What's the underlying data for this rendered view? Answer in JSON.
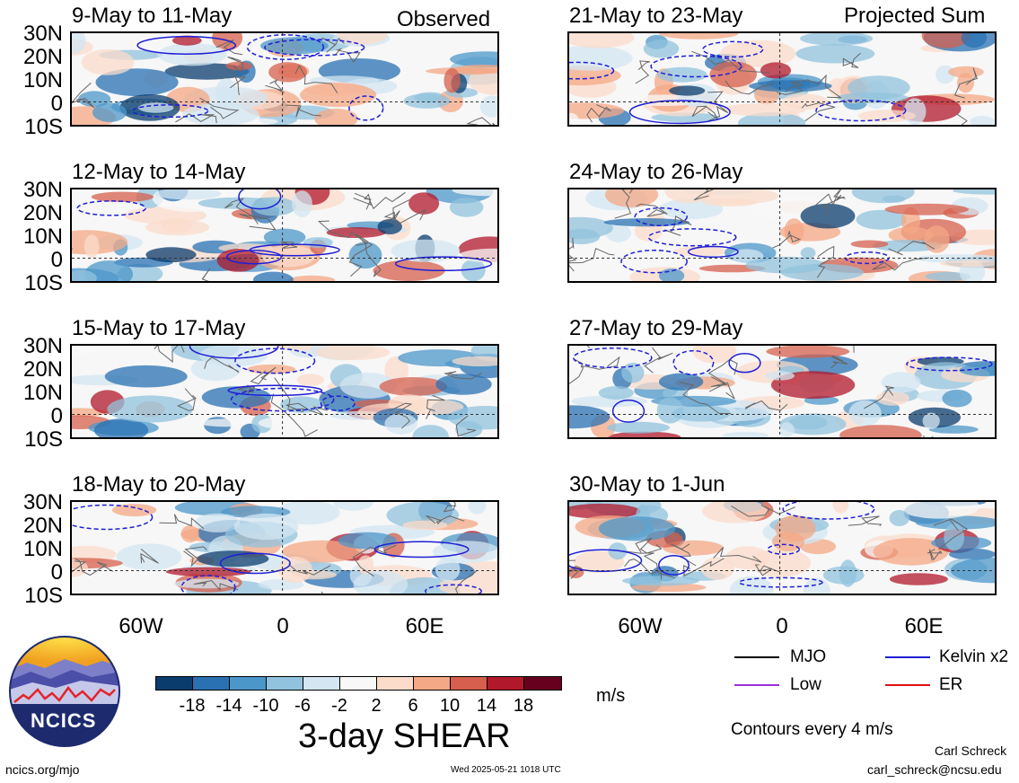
{
  "top_tags": {
    "observed": "Observed",
    "projected": "Projected Sum"
  },
  "panels_left": [
    {
      "title": "9-May to 11-May"
    },
    {
      "title": "12-May to 14-May"
    },
    {
      "title": "15-May to 17-May"
    },
    {
      "title": "18-May to 20-May"
    }
  ],
  "panels_right": [
    {
      "title": "21-May to 23-May"
    },
    {
      "title": "24-May to 26-May"
    },
    {
      "title": "27-May to 29-May"
    },
    {
      "title": "30-May to 1-Jun"
    }
  ],
  "lat_labels": [
    "30N",
    "20N",
    "10N",
    "0",
    "10S"
  ],
  "lon_labels": [
    "60W",
    "0",
    "60E"
  ],
  "colorbar": {
    "colors": [
      "#0b3c6e",
      "#2a71b3",
      "#4c97c9",
      "#91c3de",
      "#d3e6f1",
      "#f8f8f8",
      "#fbdccb",
      "#f4a886",
      "#d6604d",
      "#b2182b",
      "#67001f"
    ],
    "ticks": [
      "-18",
      "-14",
      "-10",
      "-6",
      "-2",
      "2",
      "6",
      "10",
      "14",
      "18"
    ],
    "units": "m/s",
    "title": "3-day SHEAR"
  },
  "legend": [
    {
      "label": "MJO",
      "color": "#000000"
    },
    {
      "label": "Kelvin x2",
      "color": "#1f1fd6"
    },
    {
      "label": "Low",
      "color": "#9b30d9"
    },
    {
      "label": "ER",
      "color": "#e01010"
    }
  ],
  "contour_note": "Contours every 4 m/s",
  "logo_text": "NCICS",
  "footer": {
    "url": "ncics.org/mjo",
    "timestamp": "Wed 2025-05-21 1018 UTC",
    "author": "Carl Schreck",
    "email": "carl_schreck@ncsu.edu"
  }
}
